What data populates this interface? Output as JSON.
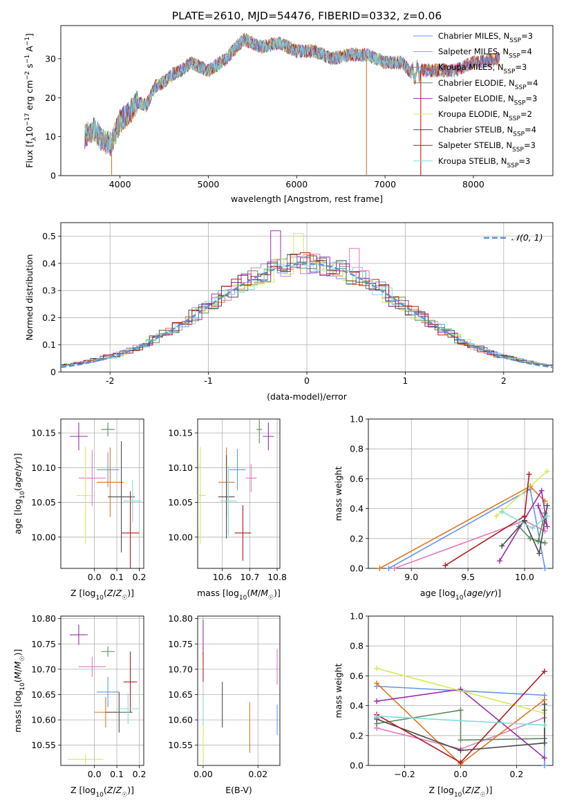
{
  "colors": [
    "#6495ed",
    "#e377c2",
    "#e0741c",
    "#5a8a5a",
    "#9a2cb0",
    "#d4ea5a",
    "#4a4a4a",
    "#b01c1c",
    "#80dada"
  ],
  "model_labels": [
    "Chabrier MILES, N_SSP=3",
    "Salpeter MILES, N_SSP=4",
    "Kroupa MILES, N_SSP=3",
    "Chabrier ELODIE, N_SSP=4",
    "Salpeter ELODIE, N_SSP=3",
    "Kroupa ELODIE, N_SSP=2",
    "Chabrier STELIB, N_SSP=4",
    "Salpeter STELIB, N_SSP=3",
    "Kroupa STELIB, N_SSP=3"
  ],
  "chart_data": [
    {
      "id": "spectrum",
      "type": "line",
      "title": "PLATE=2610, MJD=54476, FIBERID=0332, z=0.06",
      "xlabel": "wavelength [Angstrom, rest frame]",
      "ylabel": "Flux [f_λ 10^-17 erg cm^-2 s^-1 A^-1]",
      "xlim": [
        3330,
        8900
      ],
      "ylim": [
        0,
        38.5
      ],
      "xticks": [
        4000,
        5000,
        6000,
        7000,
        8000
      ],
      "yticks": [
        0,
        10,
        20,
        30
      ],
      "legend": "right",
      "envelope": {
        "x": [
          3600,
          3700,
          3800,
          3900,
          4000,
          4100,
          4200,
          4300,
          4400,
          4500,
          4600,
          4700,
          4800,
          4900,
          5000,
          5200,
          5400,
          5600,
          5800,
          6000,
          6200,
          6400,
          6600,
          6800,
          7000,
          7200,
          7300,
          7400,
          7600,
          7800,
          8000,
          8300,
          8700
        ],
        "y": [
          10,
          12,
          9,
          8,
          14,
          16,
          19,
          18,
          23,
          24,
          26,
          27,
          29,
          28,
          27,
          30,
          35,
          33,
          34,
          32,
          32,
          30,
          31,
          31,
          29,
          29,
          26,
          27,
          27,
          27,
          29,
          30,
          32
        ]
      },
      "series_note": "nine model fits overplotted, same envelope"
    },
    {
      "id": "residuals",
      "type": "line",
      "xlabel": "(data-model)/error",
      "ylabel": "Normed distribution",
      "xlim": [
        -2.5,
        2.5
      ],
      "ylim": [
        0,
        0.55
      ],
      "xticks": [
        -2,
        -1,
        0,
        1,
        2
      ],
      "yticks": [
        0.0,
        0.1,
        0.2,
        0.3,
        0.4,
        0.5
      ],
      "grid": true,
      "legend": "top-right",
      "reference_label": "𝒩(0, 1)",
      "bin_width": 0.1
    },
    {
      "id": "age_vs_Z",
      "type": "scatter",
      "xlabel": "Z [log10(Z/Z☉)]",
      "ylabel": "age [log10(age/yr)]",
      "xlim": [
        -0.15,
        0.22
      ],
      "ylim": [
        9.955,
        10.17
      ],
      "xticks": [
        -0.0,
        0.1,
        0.2
      ],
      "xticklabels": [
        "0.0",
        "0.1",
        "0.2"
      ],
      "yticks": [
        10.0,
        10.05,
        10.1,
        10.15
      ],
      "yticklabels": [
        "10.00",
        "10.05",
        "10.10",
        "10.15"
      ],
      "grid": true,
      "points": [
        {
          "x": 0.06,
          "y": 10.097,
          "xerr": 0.05,
          "yerr": 0.025
        },
        {
          "x": -0.01,
          "y": 10.085,
          "xerr": 0.06,
          "yerr": 0.04
        },
        {
          "x": 0.07,
          "y": 10.079,
          "xerr": 0.06,
          "yerr": 0.05
        },
        {
          "x": 0.06,
          "y": 10.155,
          "xerr": 0.03,
          "yerr": 0.01
        },
        {
          "x": -0.07,
          "y": 10.145,
          "xerr": 0.04,
          "yerr": 0.02
        },
        {
          "x": -0.04,
          "y": 10.06,
          "xerr": 0.04,
          "yerr": 0.07
        },
        {
          "x": 0.12,
          "y": 10.058,
          "xerr": 0.06,
          "yerr": 0.08
        },
        {
          "x": 0.16,
          "y": 10.006,
          "xerr": 0.04,
          "yerr": 0.06
        },
        {
          "x": 0.17,
          "y": 10.052,
          "xerr": 0.04,
          "yerr": 0.03
        }
      ]
    },
    {
      "id": "age_vs_mass",
      "type": "scatter",
      "xlabel": "mass [log10(M/M☉)]",
      "ylabel": "",
      "xlim": [
        10.51,
        10.81
      ],
      "ylim": [
        9.955,
        10.17
      ],
      "xticks": [
        10.6,
        10.7,
        10.8
      ],
      "xticklabels": [
        "10.6",
        "10.7",
        "10.8"
      ],
      "yticks": [
        10.0,
        10.05,
        10.1,
        10.15
      ],
      "yticklabels": [
        "10.00",
        "10.05",
        "10.10",
        "10.15"
      ],
      "grid": true,
      "points": [
        {
          "x": 10.655,
          "y": 10.097,
          "xerr": 0.03,
          "yerr": 0.03
        },
        {
          "x": 10.705,
          "y": 10.085,
          "xerr": 0.02,
          "yerr": 0.02
        },
        {
          "x": 10.615,
          "y": 10.079,
          "xerr": 0.03,
          "yerr": 0.05
        },
        {
          "x": 10.735,
          "y": 10.155,
          "xerr": 0.01,
          "yerr": 0.02
        },
        {
          "x": 10.768,
          "y": 10.145,
          "xerr": 0.02,
          "yerr": 0.02
        },
        {
          "x": 10.52,
          "y": 10.06,
          "xerr": 0.02,
          "yerr": 0.07
        },
        {
          "x": 10.615,
          "y": 10.058,
          "xerr": 0.03,
          "yerr": 0.06
        },
        {
          "x": 10.675,
          "y": 10.006,
          "xerr": 0.03,
          "yerr": 0.04
        },
        {
          "x": 10.622,
          "y": 10.052,
          "xerr": 0.03,
          "yerr": 0.05
        }
      ]
    },
    {
      "id": "weight_vs_age",
      "type": "line",
      "xlabel": "age [log10(age/yr)]",
      "ylabel": "mass weight",
      "xlim": [
        8.62,
        10.25
      ],
      "ylim": [
        0,
        1.0
      ],
      "xticks": [
        9.0,
        9.5,
        10.0
      ],
      "xticklabels": [
        "9.0",
        "9.5",
        "10.0"
      ],
      "yticks": [
        0,
        0.2,
        0.4,
        0.6,
        0.8,
        1.0
      ],
      "yticklabels": [
        "0.0",
        "0.2",
        "0.4",
        "0.6",
        "0.8",
        "1.0"
      ],
      "grid": true,
      "series": [
        {
          "x": [
            10.18,
            10.05,
            8.8
          ],
          "y": [
            0.0,
            0.53,
            0.0
          ]
        },
        {
          "x": [
            8.85,
            10.0,
            10.18,
            10.12
          ],
          "y": [
            0.0,
            0.32,
            0.25,
            0.42
          ]
        },
        {
          "x": [
            8.72,
            10.05,
            10.18
          ],
          "y": [
            0.0,
            0.55,
            0.45
          ]
        },
        {
          "x": [
            10.18,
            10.12,
            10.18,
            10.05,
            9.95
          ],
          "y": [
            0.37,
            0.18,
            0.17,
            0.2,
            0.28
          ]
        },
        {
          "x": [
            9.78,
            10.15,
            10.2,
            10.12
          ],
          "y": [
            0.05,
            0.52,
            0.28,
            0.42
          ]
        },
        {
          "x": [
            9.75,
            10.2
          ],
          "y": [
            0.35,
            0.65
          ]
        },
        {
          "x": [
            9.8,
            10.0,
            10.13,
            10.2
          ],
          "y": [
            0.15,
            0.32,
            0.1,
            0.42
          ]
        },
        {
          "x": [
            9.3,
            10.0,
            10.04
          ],
          "y": [
            0.02,
            0.35,
            0.63
          ]
        },
        {
          "x": [
            9.8,
            10.07,
            10.2
          ],
          "y": [
            0.38,
            0.27,
            0.35
          ]
        }
      ]
    },
    {
      "id": "mass_vs_Z",
      "type": "scatter",
      "xlabel": "Z [log10(Z/Z☉)]",
      "ylabel": "mass [log10(M/M☉)]",
      "xlim": [
        -0.15,
        0.22
      ],
      "ylim": [
        10.51,
        10.805
      ],
      "xticks": [
        0.0,
        0.1,
        0.2
      ],
      "xticklabels": [
        "0.0",
        "0.1",
        "0.2"
      ],
      "yticks": [
        10.55,
        10.6,
        10.65,
        10.7,
        10.75,
        10.8
      ],
      "yticklabels": [
        "10.55",
        "10.60",
        "10.65",
        "10.70",
        "10.75",
        "10.80"
      ],
      "grid": true,
      "points": [
        {
          "x": 0.06,
          "y": 10.655,
          "xerr": 0.05,
          "yerr": 0.03
        },
        {
          "x": -0.01,
          "y": 10.705,
          "xerr": 0.06,
          "yerr": 0.02
        },
        {
          "x": 0.05,
          "y": 10.615,
          "xerr": 0.05,
          "yerr": 0.03
        },
        {
          "x": 0.06,
          "y": 10.735,
          "xerr": 0.03,
          "yerr": 0.01
        },
        {
          "x": -0.07,
          "y": 10.768,
          "xerr": 0.04,
          "yerr": 0.02
        },
        {
          "x": -0.04,
          "y": 10.522,
          "xerr": 0.08,
          "yerr": 0.01
        },
        {
          "x": 0.11,
          "y": 10.615,
          "xerr": 0.06,
          "yerr": 0.04
        },
        {
          "x": 0.16,
          "y": 10.675,
          "xerr": 0.03,
          "yerr": 0.06
        },
        {
          "x": 0.15,
          "y": 10.622,
          "xerr": 0.05,
          "yerr": 0.03
        }
      ]
    },
    {
      "id": "mass_vs_ebv",
      "type": "scatter",
      "xlabel": "E(B-V)",
      "ylabel": "",
      "xlim": [
        -0.002,
        0.028
      ],
      "ylim": [
        10.51,
        10.805
      ],
      "xticks": [
        0.0,
        0.02
      ],
      "xticklabels": [
        "0.00",
        "0.02"
      ],
      "yticks": [
        10.55,
        10.6,
        10.65,
        10.7,
        10.75,
        10.8
      ],
      "yticklabels": [
        "10.55",
        "10.60",
        "10.65",
        "10.70",
        "10.75",
        "10.80"
      ],
      "grid": true,
      "points": [
        {
          "x": 0.027,
          "y": 10.6,
          "xerr": 0,
          "yerr": 0.03
        },
        {
          "x": 0.027,
          "y": 10.705,
          "xerr": 0,
          "yerr": 0.035
        },
        {
          "x": 0.017,
          "y": 10.585,
          "xerr": 0,
          "yerr": 0.05
        },
        {
          "x": 0.0,
          "y": 10.735,
          "xerr": 0,
          "yerr": 0.01
        },
        {
          "x": 0.0,
          "y": 10.768,
          "xerr": 0,
          "yerr": 0.03
        },
        {
          "x": 0.0,
          "y": 10.55,
          "xerr": 0,
          "yerr": 0.05
        },
        {
          "x": 0.007,
          "y": 10.63,
          "xerr": 0,
          "yerr": 0.045
        },
        {
          "x": 0.0,
          "y": 10.705,
          "xerr": 0,
          "yerr": 0.03
        },
        {
          "x": 0.0,
          "y": 10.62,
          "xerr": 0,
          "yerr": 0.03
        }
      ]
    },
    {
      "id": "weight_vs_Z",
      "type": "line",
      "xlabel": "Z [log10(Z/Z☉)]",
      "ylabel": "mass weight",
      "xlim": [
        -0.33,
        0.33
      ],
      "ylim": [
        0,
        1.0
      ],
      "xticks": [
        -0.2,
        0.0,
        0.2
      ],
      "xticklabels": [
        "−0.2",
        "0.0",
        "0.2"
      ],
      "yticks": [
        0,
        0.2,
        0.4,
        0.6,
        0.8,
        1.0
      ],
      "yticklabels": [
        "0.0",
        "0.2",
        "0.4",
        "0.6",
        "0.8",
        "1.0"
      ],
      "grid": true,
      "series": [
        {
          "x": [
            -0.3,
            0.3,
            0.3
          ],
          "y": [
            0.53,
            0.47,
            0.0
          ]
        },
        {
          "x": [
            -0.3,
            -0.3,
            0.0,
            0.3
          ],
          "y": [
            0.32,
            0.25,
            0.11,
            0.32
          ]
        },
        {
          "x": [
            -0.3,
            0.0,
            0.3
          ],
          "y": [
            0.55,
            0.01,
            0.44
          ]
        },
        {
          "x": [
            -0.3,
            0.0,
            0.0,
            0.3,
            0.3
          ],
          "y": [
            0.28,
            0.37,
            0.17,
            0.18,
            0.37
          ]
        },
        {
          "x": [
            -0.3,
            0.0,
            0.3
          ],
          "y": [
            0.43,
            0.51,
            0.05
          ]
        },
        {
          "x": [
            -0.3,
            0.3
          ],
          "y": [
            0.65,
            0.35
          ]
        },
        {
          "x": [
            -0.3,
            0.0,
            0.3,
            0.3
          ],
          "y": [
            0.31,
            0.1,
            0.15,
            0.41
          ]
        },
        {
          "x": [
            -0.3,
            0.0,
            0.3
          ],
          "y": [
            0.34,
            0.02,
            0.63
          ]
        },
        {
          "x": [
            -0.3,
            0.3
          ],
          "y": [
            0.33,
            0.27
          ]
        }
      ]
    }
  ]
}
